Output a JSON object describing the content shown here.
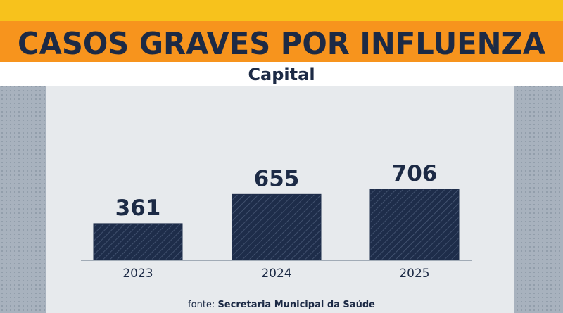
{
  "chart_data": {
    "type": "bar",
    "title": "CASOS GRAVES POR INFLUENZA",
    "subtitle": "Capital",
    "categories": [
      "2023",
      "2024",
      "2025"
    ],
    "values": [
      361,
      655,
      706
    ],
    "color": "#1e2d4a",
    "source_label": "fonte:",
    "source": "Secretaria Municipal da Saúde"
  }
}
